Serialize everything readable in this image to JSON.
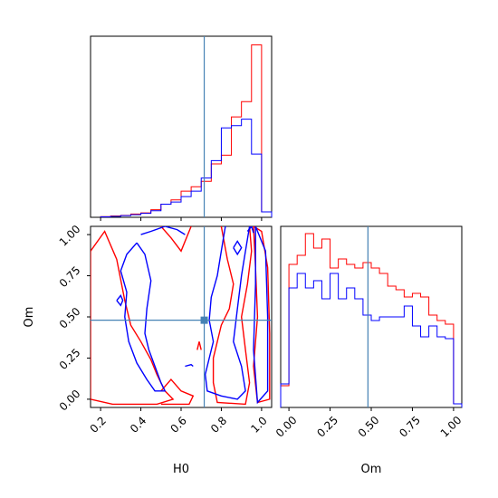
{
  "chart_data": [
    {
      "type": "histogram",
      "panel": "H0 marginal",
      "xlim": [
        0.15,
        1.05
      ],
      "truth": 0.715,
      "bin_edges": [
        0.2,
        0.25,
        0.3,
        0.35,
        0.4,
        0.45,
        0.5,
        0.55,
        0.6,
        0.65,
        0.7,
        0.75,
        0.8,
        0.85,
        0.9,
        0.95,
        1.0,
        1.05
      ],
      "series": [
        {
          "color": "#ff0000",
          "values": [
            0.003,
            0.006,
            0.009,
            0.015,
            0.02,
            0.035,
            0.06,
            0.08,
            0.12,
            0.14,
            0.165,
            0.245,
            0.285,
            0.46,
            0.53,
            0.79,
            0.025
          ]
        },
        {
          "color": "#0000ff",
          "values": [
            0.002,
            0.004,
            0.008,
            0.012,
            0.018,
            0.03,
            0.06,
            0.07,
            0.095,
            0.12,
            0.18,
            0.26,
            0.41,
            0.42,
            0.45,
            0.29,
            0.025
          ]
        }
      ],
      "xticks": [
        0.2,
        0.4,
        0.6,
        0.8,
        1.0
      ]
    },
    {
      "type": "contour",
      "panel": "H0 vs Om joint",
      "xlabel": "H0",
      "ylabel": "Om",
      "xlim": [
        0.15,
        1.05
      ],
      "ylim": [
        -0.05,
        1.05
      ],
      "xticks": [
        "0.2",
        "0.4",
        "0.6",
        "0.8",
        "1.0"
      ],
      "yticks": [
        "0.00",
        "0.25",
        "0.50",
        "0.75",
        "1.00"
      ],
      "truth": {
        "H0": 0.715,
        "Om": 0.48
      },
      "series": [
        {
          "color": "#ff0000",
          "contours": [
            [
              [
                0.15,
                0.0
              ],
              [
                0.15,
                0.9
              ],
              [
                0.22,
                1.02
              ],
              [
                0.28,
                0.85
              ],
              [
                0.32,
                0.6
              ],
              [
                0.35,
                0.45
              ],
              [
                0.4,
                0.35
              ],
              [
                0.45,
                0.24
              ],
              [
                0.48,
                0.15
              ],
              [
                0.52,
                0.05
              ],
              [
                0.56,
                0.0
              ],
              [
                0.48,
                -0.03
              ],
              [
                0.36,
                -0.03
              ],
              [
                0.26,
                -0.03
              ],
              [
                0.15,
                0.0
              ]
            ],
            [
              [
                0.5,
                1.05
              ],
              [
                0.55,
                0.98
              ],
              [
                0.6,
                0.9
              ],
              [
                0.65,
                1.05
              ]
            ],
            [
              [
                0.5,
                0.05
              ],
              [
                0.55,
                0.12
              ],
              [
                0.6,
                0.05
              ],
              [
                0.66,
                0.02
              ],
              [
                0.64,
                -0.03
              ],
              [
                0.5,
                -0.03
              ]
            ],
            [
              [
                0.68,
                0.3
              ],
              [
                0.69,
                0.35
              ],
              [
                0.7,
                0.3
              ]
            ],
            [
              [
                0.8,
                1.05
              ],
              [
                0.83,
                0.85
              ],
              [
                0.86,
                0.7
              ],
              [
                0.84,
                0.55
              ],
              [
                0.8,
                0.45
              ],
              [
                0.78,
                0.35
              ],
              [
                0.76,
                0.25
              ],
              [
                0.76,
                0.1
              ],
              [
                0.78,
                -0.02
              ],
              [
                0.92,
                -0.03
              ],
              [
                0.94,
                0.1
              ],
              [
                0.92,
                0.3
              ],
              [
                0.9,
                0.5
              ],
              [
                0.93,
                0.7
              ],
              [
                0.95,
                0.9
              ],
              [
                0.94,
                1.05
              ]
            ],
            [
              [
                0.96,
                1.05
              ],
              [
                1.0,
                1.02
              ],
              [
                1.03,
                0.8
              ],
              [
                1.04,
                0.4
              ],
              [
                1.04,
                0.0
              ],
              [
                0.98,
                -0.02
              ],
              [
                0.96,
                0.2
              ],
              [
                0.98,
                0.5
              ],
              [
                0.97,
                0.8
              ],
              [
                0.96,
                1.05
              ]
            ]
          ]
        },
        {
          "color": "#0000ff",
          "contours": [
            [
              [
                0.4,
                1.0
              ],
              [
                0.45,
                1.02
              ],
              [
                0.52,
                1.05
              ],
              [
                0.58,
                1.03
              ],
              [
                0.62,
                1.0
              ]
            ],
            [
              [
                0.38,
                0.95
              ],
              [
                0.42,
                0.88
              ],
              [
                0.45,
                0.72
              ],
              [
                0.43,
                0.55
              ],
              [
                0.42,
                0.4
              ],
              [
                0.44,
                0.3
              ],
              [
                0.47,
                0.2
              ],
              [
                0.5,
                0.1
              ],
              [
                0.52,
                0.05
              ],
              [
                0.47,
                0.05
              ],
              [
                0.43,
                0.12
              ],
              [
                0.38,
                0.22
              ],
              [
                0.34,
                0.35
              ],
              [
                0.32,
                0.5
              ],
              [
                0.33,
                0.65
              ],
              [
                0.3,
                0.78
              ],
              [
                0.33,
                0.88
              ],
              [
                0.38,
                0.95
              ]
            ],
            [
              [
                0.28,
                0.6
              ],
              [
                0.3,
                0.63
              ],
              [
                0.31,
                0.6
              ],
              [
                0.3,
                0.57
              ],
              [
                0.28,
                0.6
              ]
            ],
            [
              [
                0.62,
                0.2
              ],
              [
                0.65,
                0.21
              ],
              [
                0.66,
                0.2
              ]
            ],
            [
              [
                0.82,
                1.05
              ],
              [
                0.8,
                0.9
              ],
              [
                0.78,
                0.75
              ],
              [
                0.75,
                0.62
              ],
              [
                0.74,
                0.48
              ],
              [
                0.76,
                0.35
              ],
              [
                0.74,
                0.25
              ],
              [
                0.72,
                0.15
              ],
              [
                0.73,
                0.05
              ],
              [
                0.8,
                0.02
              ],
              [
                0.88,
                0.0
              ],
              [
                0.92,
                0.05
              ],
              [
                0.9,
                0.2
              ],
              [
                0.86,
                0.35
              ],
              [
                0.88,
                0.55
              ],
              [
                0.9,
                0.75
              ],
              [
                0.92,
                0.9
              ],
              [
                0.94,
                1.05
              ]
            ],
            [
              [
                0.97,
                1.05
              ],
              [
                1.02,
                0.9
              ],
              [
                1.03,
                0.5
              ],
              [
                1.03,
                0.05
              ],
              [
                0.98,
                -0.02
              ],
              [
                0.96,
                0.3
              ],
              [
                0.97,
                0.7
              ],
              [
                0.97,
                1.05
              ]
            ],
            [
              [
                0.86,
                0.92
              ],
              [
                0.88,
                0.96
              ],
              [
                0.9,
                0.92
              ],
              [
                0.88,
                0.88
              ],
              [
                0.86,
                0.92
              ]
            ],
            [
              [
                0.93,
                1.02
              ],
              [
                0.95,
                1.05
              ],
              [
                0.96,
                1.01
              ]
            ]
          ]
        }
      ]
    },
    {
      "type": "histogram",
      "panel": "Om marginal",
      "xlabel": "Om",
      "xlim": [
        -0.05,
        1.05
      ],
      "truth": 0.48,
      "xticks": [
        "0.00",
        "0.25",
        "0.50",
        "0.75",
        "1.00"
      ],
      "bin_edges": [
        -0.05,
        0.0,
        0.05,
        0.1,
        0.15,
        0.2,
        0.25,
        0.3,
        0.35,
        0.4,
        0.45,
        0.5,
        0.55,
        0.6,
        0.65,
        0.7,
        0.75,
        0.8,
        0.85,
        0.9,
        0.95,
        1.0,
        1.05
      ],
      "series": [
        {
          "color": "#ff0000",
          "values": [
            0.12,
            0.79,
            0.84,
            0.96,
            0.88,
            0.93,
            0.77,
            0.82,
            0.79,
            0.77,
            0.8,
            0.77,
            0.74,
            0.67,
            0.65,
            0.61,
            0.63,
            0.61,
            0.51,
            0.48,
            0.46,
            0.02
          ]
        },
        {
          "color": "#0000ff",
          "values": [
            0.13,
            0.66,
            0.74,
            0.66,
            0.7,
            0.6,
            0.74,
            0.6,
            0.66,
            0.6,
            0.51,
            0.48,
            0.5,
            0.5,
            0.5,
            0.56,
            0.45,
            0.39,
            0.45,
            0.39,
            0.38,
            0.02
          ]
        }
      ]
    }
  ]
}
